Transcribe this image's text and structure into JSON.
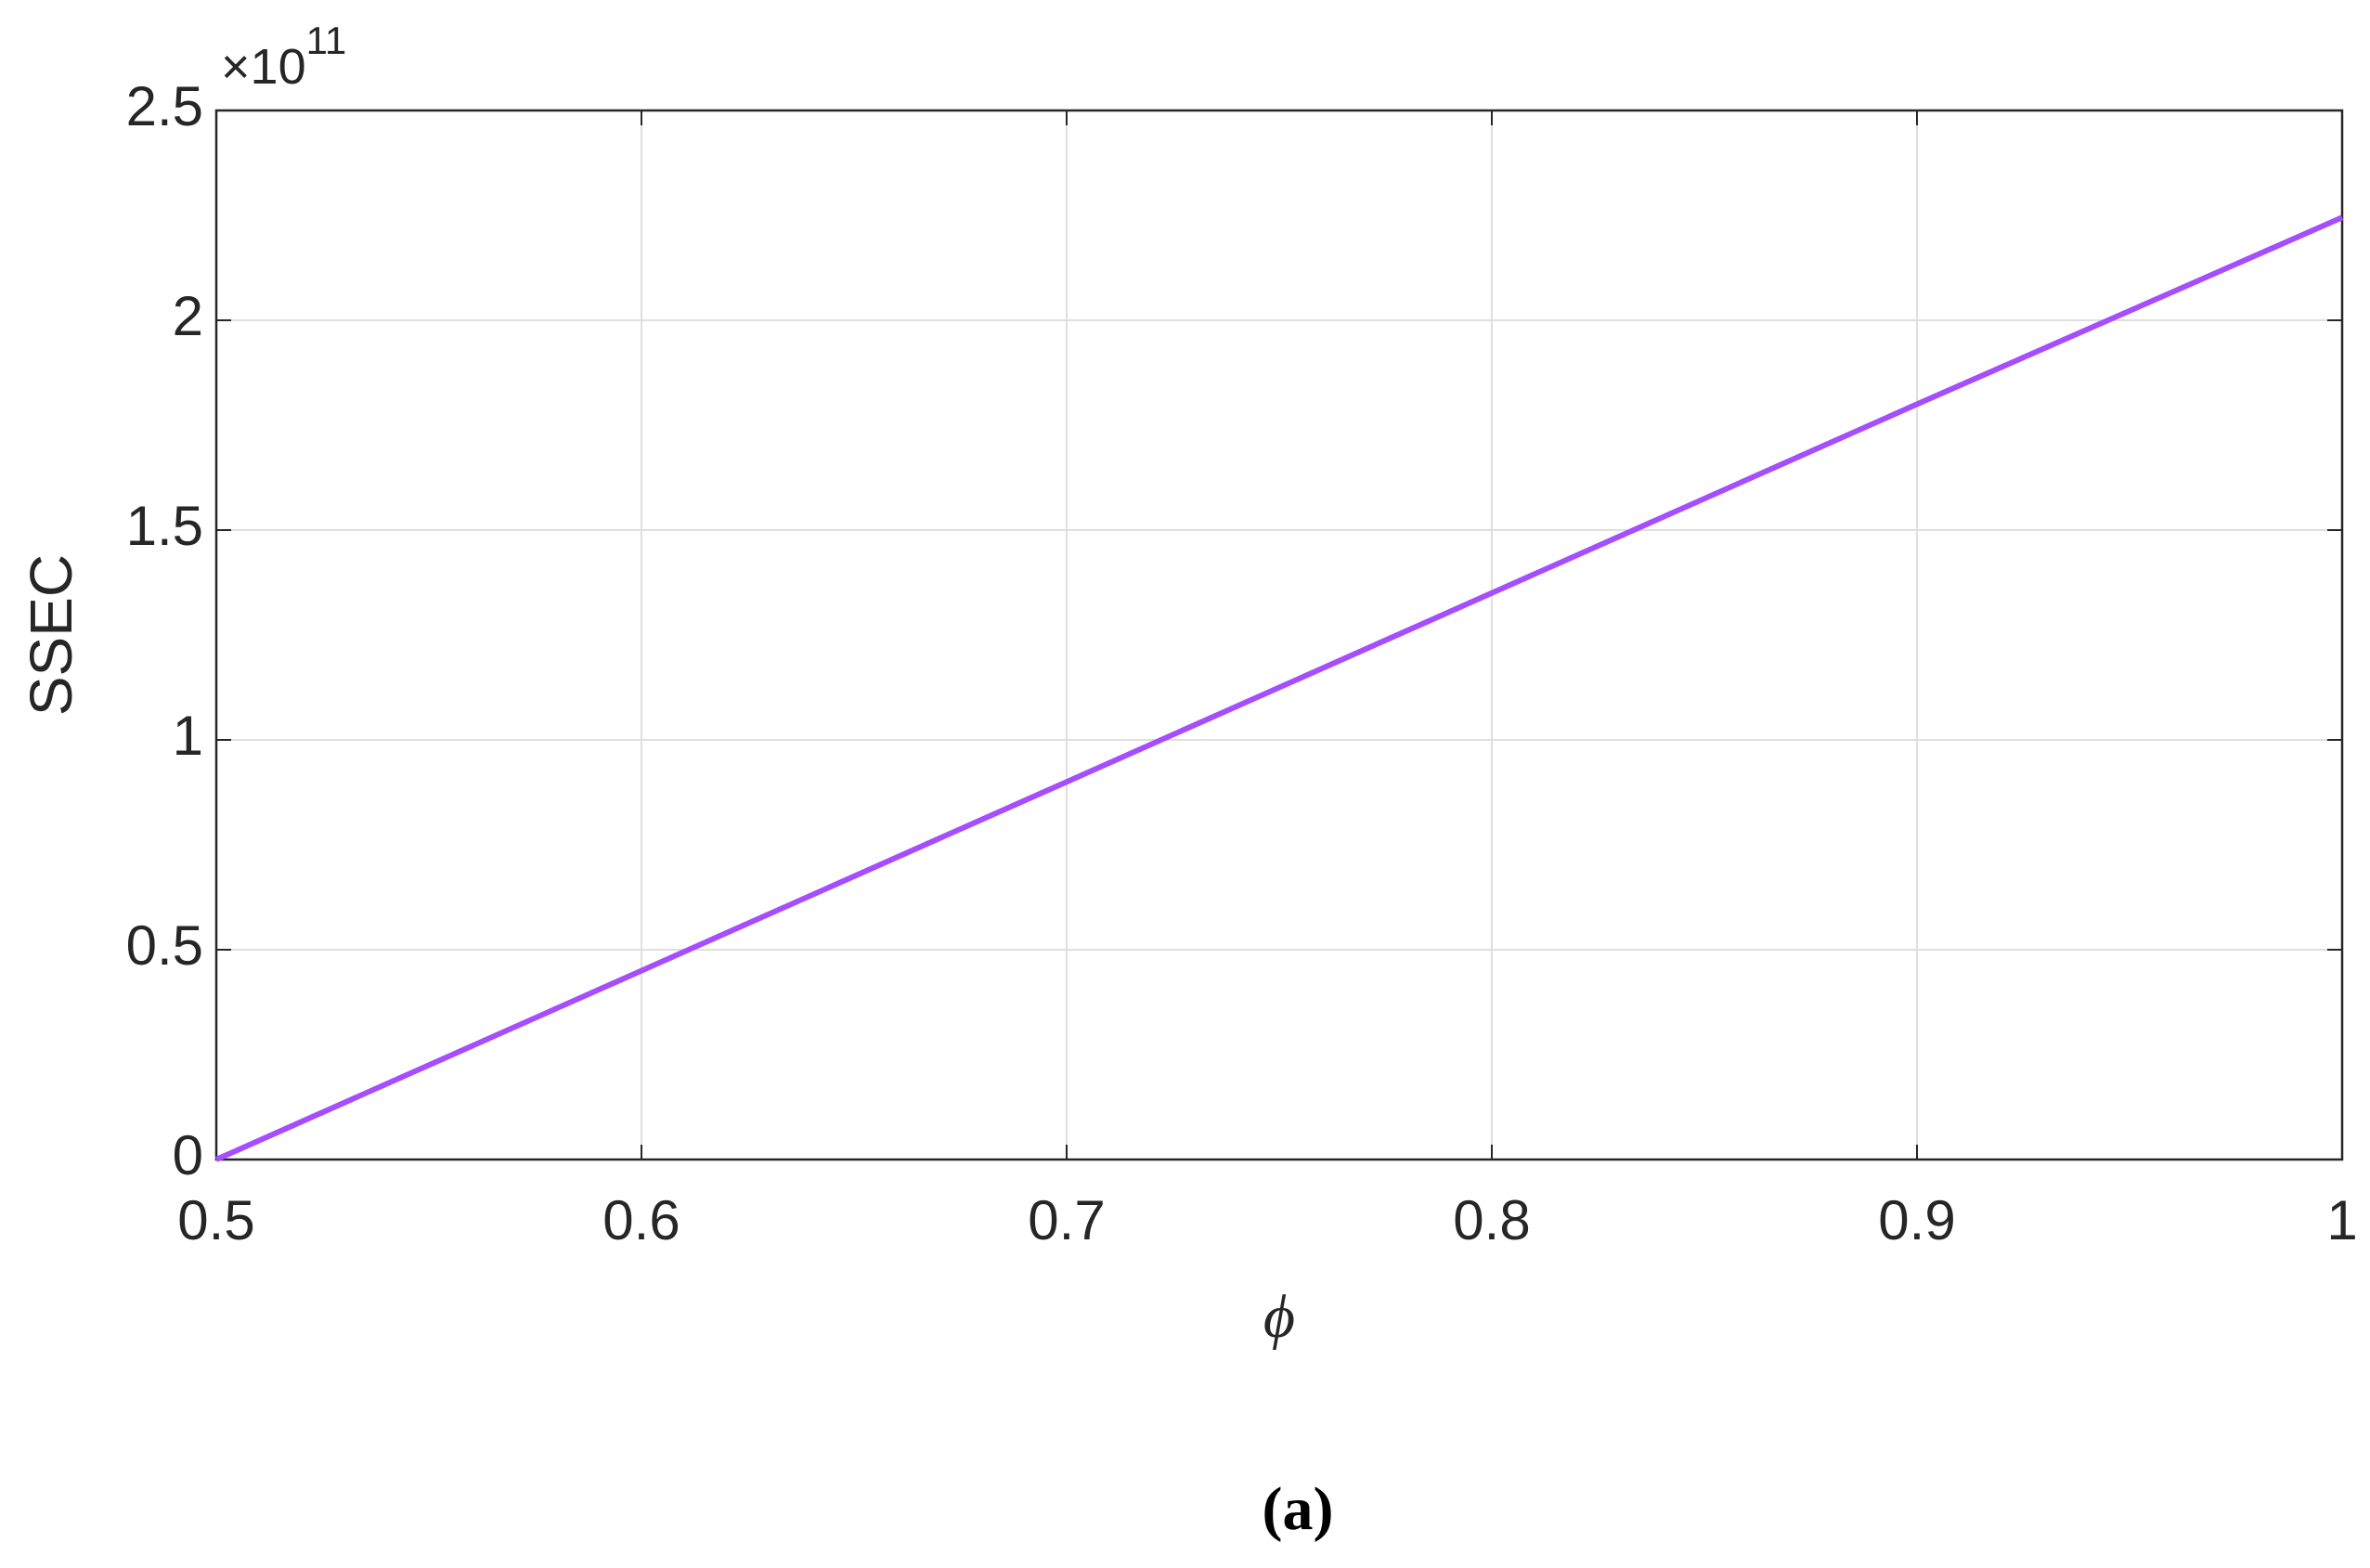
{
  "chart_data": {
    "type": "line",
    "y_label": "SSEC",
    "x_label": "ϕ",
    "y_multiplier": {
      "base": "×10",
      "exponent": "11"
    },
    "caption": "(a)",
    "x": [
      0.5,
      0.6,
      0.7,
      0.8,
      0.9,
      1
    ],
    "series": [
      {
        "name": "SSEC",
        "color": "#a64dff",
        "values": [
          0,
          0.45,
          0.9,
          1.35,
          1.8,
          2.245
        ]
      }
    ],
    "xlim": [
      0.5,
      1
    ],
    "xticks": [
      0.5,
      0.6,
      0.7,
      0.8,
      0.9,
      1
    ],
    "ylim": [
      0,
      2.5
    ],
    "yticks": [
      0,
      0.5,
      1,
      1.5,
      2,
      2.5
    ],
    "grid": true
  }
}
